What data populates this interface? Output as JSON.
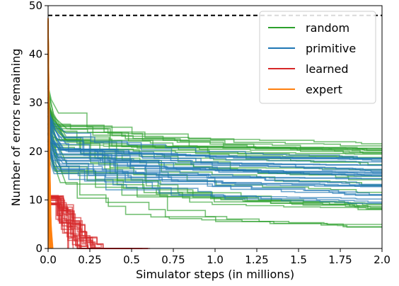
{
  "chart_data": {
    "type": "line",
    "xlabel": "Simulator steps (in millions)",
    "ylabel": "Number of errors remaining",
    "xlim": [
      0,
      2.0
    ],
    "ylim": [
      0,
      50
    ],
    "x_ticks": [
      "0.0",
      "0.25",
      "0.5",
      "0.75",
      "1.0",
      "1.25",
      "1.5",
      "1.75",
      "2.0"
    ],
    "y_ticks": [
      "0",
      "10",
      "20",
      "30",
      "40",
      "50"
    ],
    "grid": false,
    "legend_position": "top-right",
    "reference_line": {
      "y": 48,
      "style": "dashed",
      "color": "#000000"
    },
    "series": [
      {
        "name": "random",
        "color": "#2ca02c",
        "runs": 30,
        "start_range": [
          22,
          34
        ],
        "final_range": [
          4,
          22
        ],
        "x_end": 2.0
      },
      {
        "name": "primitive",
        "color": "#1f77b4",
        "runs": 30,
        "start_range": [
          20,
          30
        ],
        "final_range": [
          9,
          19
        ],
        "x_end": 2.0
      },
      {
        "name": "learned",
        "color": "#d62728",
        "runs": 25,
        "start_range": [
          9,
          11
        ],
        "final_range": [
          0,
          0
        ],
        "x_end_range": [
          0.1,
          0.62
        ]
      },
      {
        "name": "expert",
        "color": "#ff7f0e",
        "runs": 20,
        "start_range": [
          45,
          48
        ],
        "final_range": [
          0,
          0
        ],
        "x_end_range": [
          0.0,
          0.03
        ]
      }
    ]
  }
}
